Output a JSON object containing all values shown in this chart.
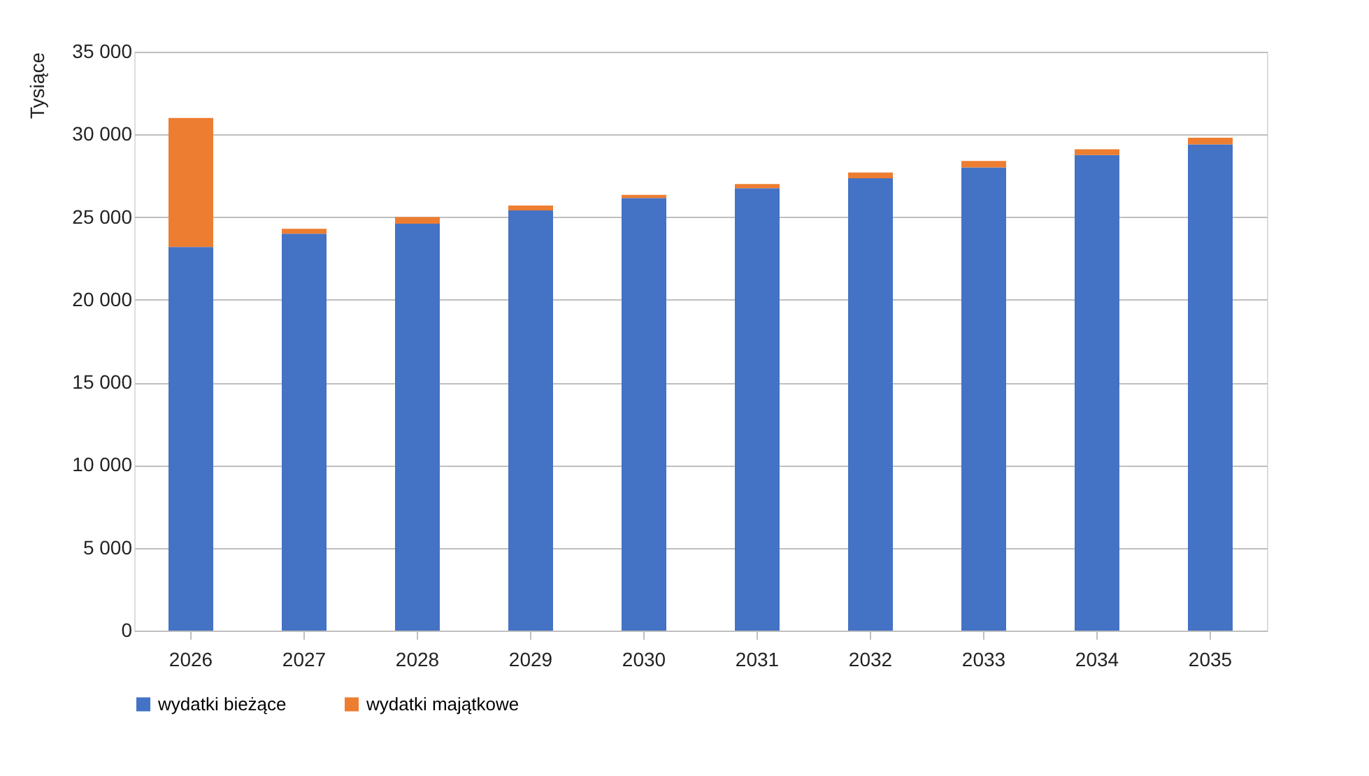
{
  "chart_data": {
    "type": "bar",
    "stacked": true,
    "ylabel": "Tysiące",
    "categories": [
      "2026",
      "2027",
      "2028",
      "2029",
      "2030",
      "2031",
      "2032",
      "2033",
      "2034",
      "2035"
    ],
    "series": [
      {
        "name": "wydatki bieżące",
        "color": "#4472c4",
        "values": [
          23200,
          24000,
          24600,
          25400,
          26150,
          26750,
          27350,
          28000,
          28750,
          29400
        ]
      },
      {
        "name": "wydatki majątkowe",
        "color": "#ed7d31",
        "values": [
          7800,
          300,
          400,
          300,
          200,
          250,
          350,
          400,
          350,
          400
        ]
      }
    ],
    "ylim": [
      0,
      35000
    ],
    "yticks": [
      0,
      {
        "value": 5000,
        "label": "5 000"
      },
      {
        "value": 10000,
        "label": "10 000"
      },
      {
        "value": 15000,
        "label": "15 000"
      },
      {
        "value": 20000,
        "label": "20 000"
      },
      {
        "value": 25000,
        "label": "25 000"
      },
      {
        "value": 30000,
        "label": "30 000"
      },
      {
        "value": 35000,
        "label": "35 000"
      }
    ],
    "grid": "y",
    "legend": "bottom"
  }
}
